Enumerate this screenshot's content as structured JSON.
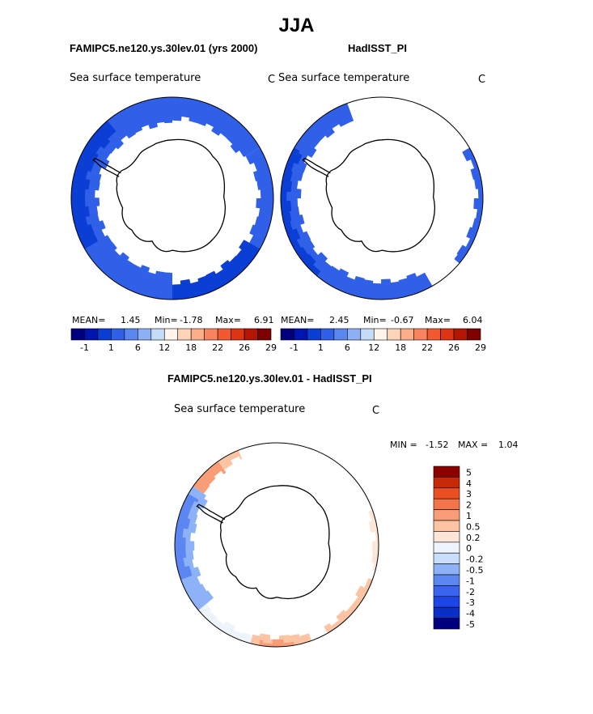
{
  "figure": {
    "season": "JJA",
    "left_title": "FAMIPC5.ne120.ys.30lev.01 (yrs 2000)",
    "right_title": "HadISST_PI",
    "diff_title": "FAMIPC5.ne120.ys.30lev.01 - HadISST_PI"
  },
  "colors": {
    "sst_scale": [
      "#00007f",
      "#0015b0",
      "#0a3ed4",
      "#3060e8",
      "#5a86f0",
      "#8db0f5",
      "#c4dcf7",
      "#fff5eb",
      "#fdd4b8",
      "#fcae8a",
      "#f88460",
      "#f2592f",
      "#dd3514",
      "#b31704",
      "#7f0000"
    ],
    "diff_scale": [
      "#00007f",
      "#0a2fc8",
      "#1e46e6",
      "#3a64ee",
      "#5c86f2",
      "#8eb2f7",
      "#c9defa",
      "#eef4fc",
      "#fde6d6",
      "#fcc4a2",
      "#f99d76",
      "#f47449",
      "#ea4f22",
      "#c52b0a",
      "#8c0000"
    ]
  },
  "chart_data": [
    {
      "type": "heatmap",
      "name": "model",
      "title": "Sea surface temperature",
      "units": "C",
      "stats": {
        "mean_label": "MEAN=",
        "mean": "1.45",
        "min_label": "Min=",
        "min": "-1.78",
        "max_label": "Max=",
        "max": "6.91"
      },
      "colorbar_ticks": [
        "-1",
        "1",
        "6",
        "12",
        "18",
        "22",
        "26",
        "29"
      ]
    },
    {
      "type": "heatmap",
      "name": "observed",
      "title": "Sea surface temperature",
      "units": "C",
      "stats": {
        "mean_label": "MEAN=",
        "mean": "2.45",
        "min_label": "Min=",
        "min": "-0.67",
        "max_label": "Max=",
        "max": "6.04"
      },
      "colorbar_ticks": [
        "-1",
        "1",
        "6",
        "12",
        "18",
        "22",
        "26",
        "29"
      ]
    },
    {
      "type": "heatmap",
      "name": "difference",
      "title": "Sea surface temperature",
      "units": "C",
      "stats": {
        "min_label": "MIN =",
        "min": "-1.52",
        "max_label": "MAX =",
        "max": "1.04"
      },
      "colorbar_levels": [
        "5",
        "4",
        "3",
        "2",
        "1",
        "0.5",
        "0.2",
        "0",
        "-0.2",
        "-0.5",
        "-1",
        "-2",
        "-3",
        "-4",
        "-5"
      ]
    }
  ]
}
